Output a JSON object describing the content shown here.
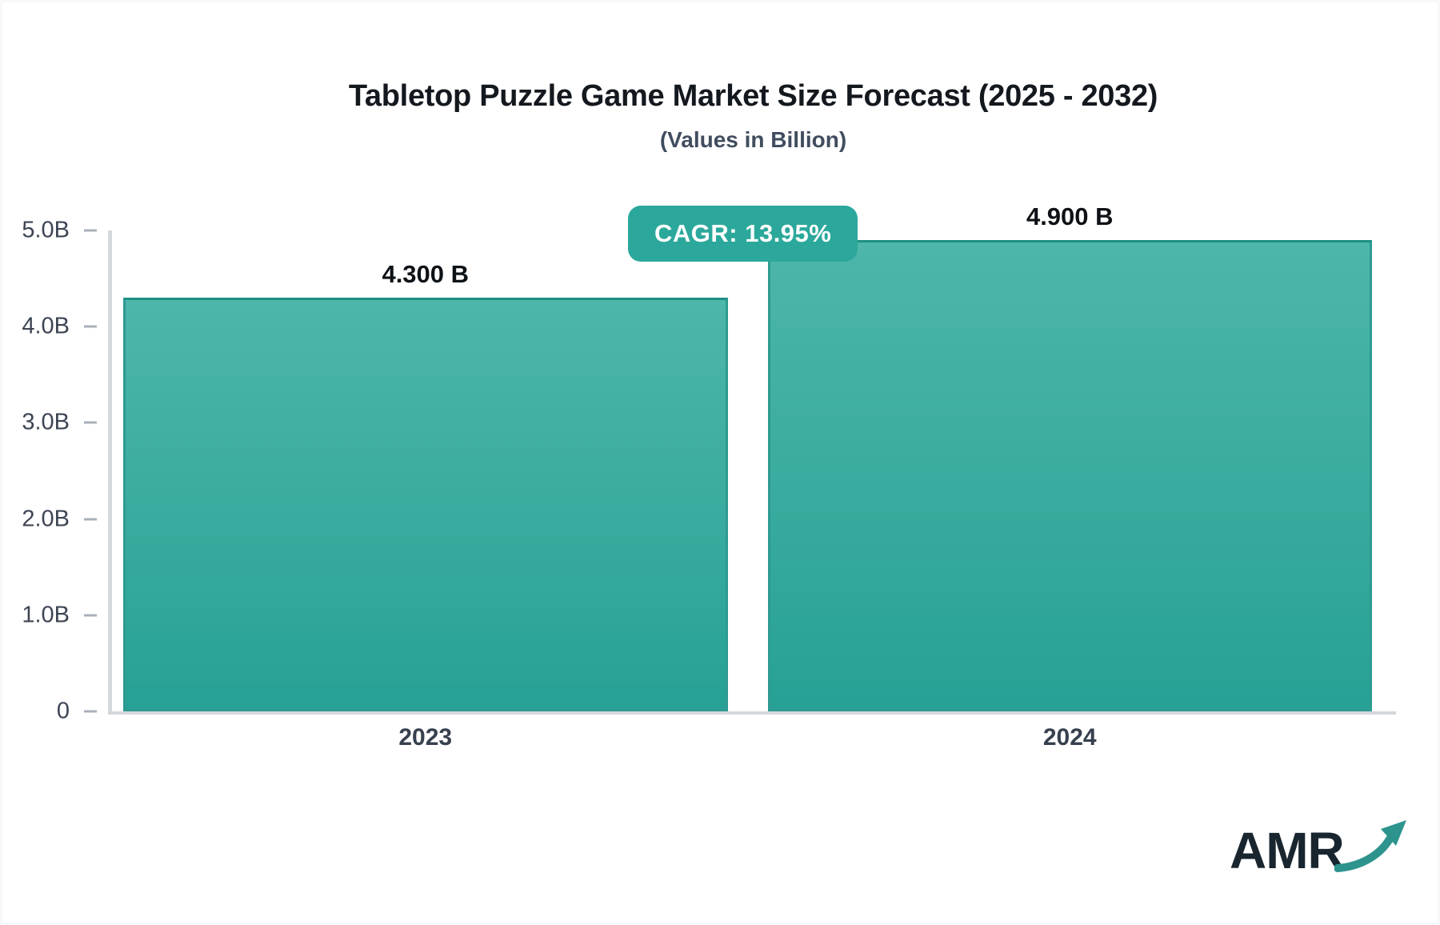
{
  "chart_data": {
    "type": "bar",
    "title": "Tabletop Puzzle Game Market Size Forecast (2025 - 2032)",
    "subtitle": "(Values in Billion)",
    "categories": [
      "2023",
      "2024"
    ],
    "values": [
      4.3,
      4.9
    ],
    "value_labels": [
      "4.300 B",
      "4.900 B"
    ],
    "ylim": [
      0,
      5
    ],
    "yticks": [
      {
        "value": 5,
        "label": "5.0B"
      },
      {
        "value": 4,
        "label": "4.0B"
      },
      {
        "value": 3,
        "label": "3.0B"
      },
      {
        "value": 2,
        "label": "2.0B"
      },
      {
        "value": 1,
        "label": "1.0B"
      },
      {
        "value": 0,
        "label": "0"
      }
    ],
    "grid": false,
    "legend": false,
    "annotation": "CAGR: 13.95%",
    "colors": {
      "bar_top": "#4eb6ab",
      "bar_bottom": "#27a195",
      "bar_border": "#2d9b90",
      "bar_border_top": "#1d9084",
      "badge_bg": "#2ba89b",
      "badge_text": "#ffffff",
      "axis_line": "#d4d8dd",
      "tick_dash": "#a9b0ba",
      "tick_text": "#3d4553",
      "title_text": "#14191f",
      "subtitle_text": "#414d5f",
      "value_text": "#0d1217",
      "xlabel_text": "#37404e",
      "logo_text": "#192630",
      "logo_arrow": "#2d938d"
    }
  },
  "branding": {
    "logo_text": "AMR"
  }
}
